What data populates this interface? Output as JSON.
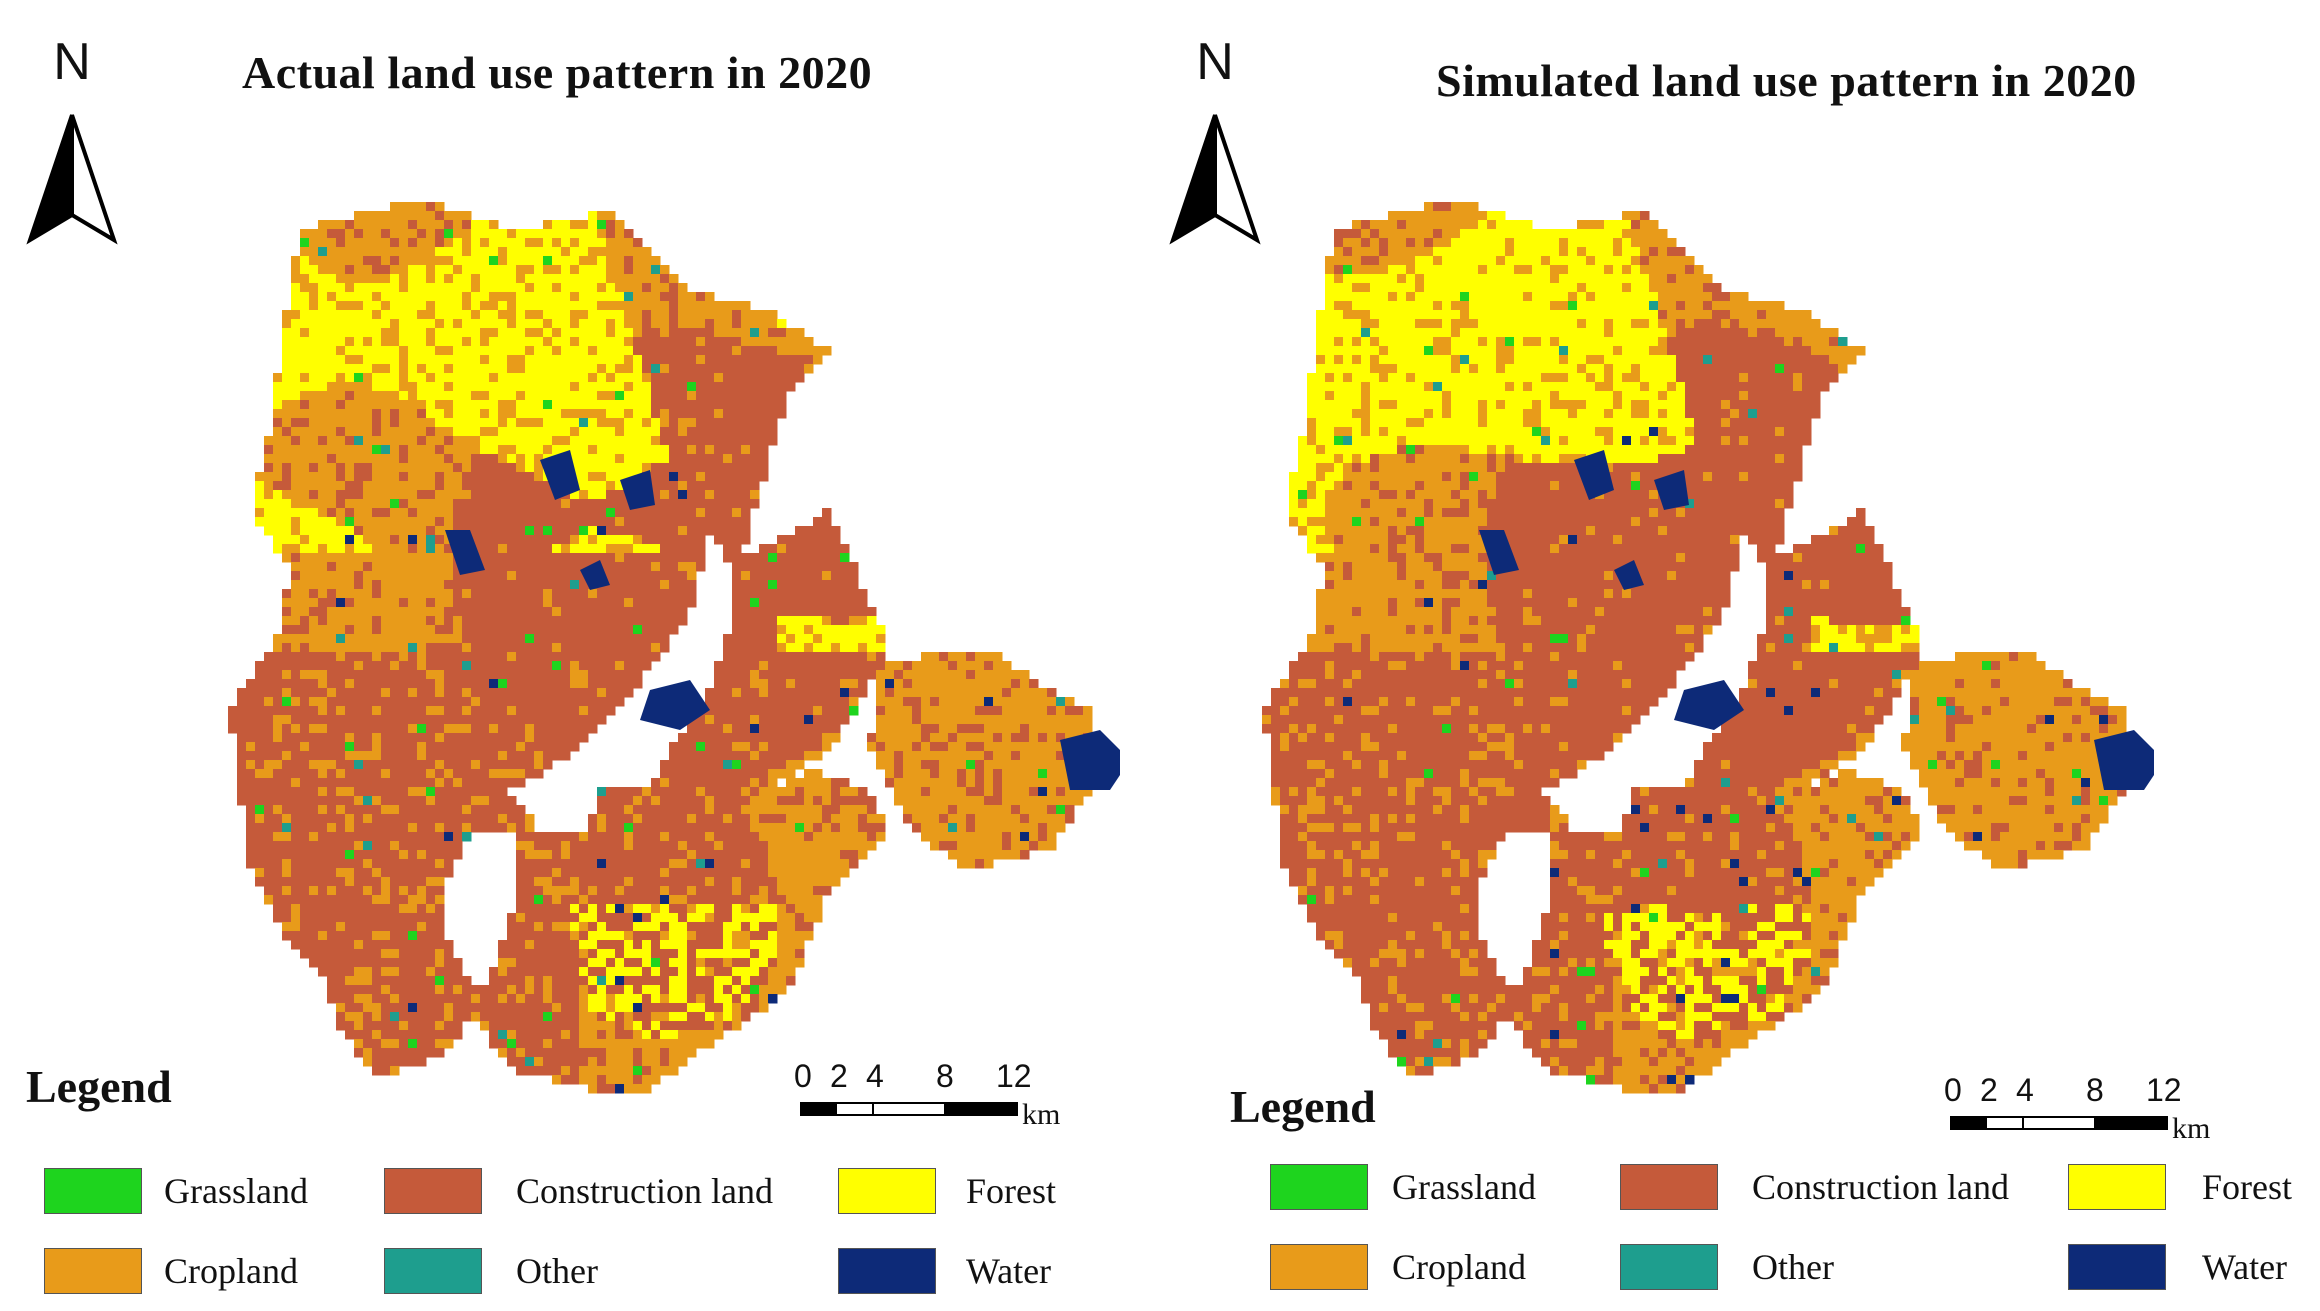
{
  "panels": [
    {
      "title": "Actual land use pattern in 2020",
      "variant": "actual"
    },
    {
      "title": "Simulated land use pattern in 2020",
      "variant": "simulated"
    }
  ],
  "north_label": "N",
  "legend": {
    "title": "Legend",
    "items": [
      {
        "label": "Grassland",
        "color": "#1ed41e"
      },
      {
        "label": "Construction land",
        "color": "#c55a3a"
      },
      {
        "label": "Forest",
        "color": "#ffff00"
      },
      {
        "label": "Cropland",
        "color": "#e89b1a"
      },
      {
        "label": "Other",
        "color": "#1e9e8e"
      },
      {
        "label": "Water",
        "color": "#0d2a78"
      }
    ]
  },
  "scale": {
    "ticks": [
      "0",
      "2",
      "4",
      "8",
      "12"
    ],
    "unit": "km"
  }
}
